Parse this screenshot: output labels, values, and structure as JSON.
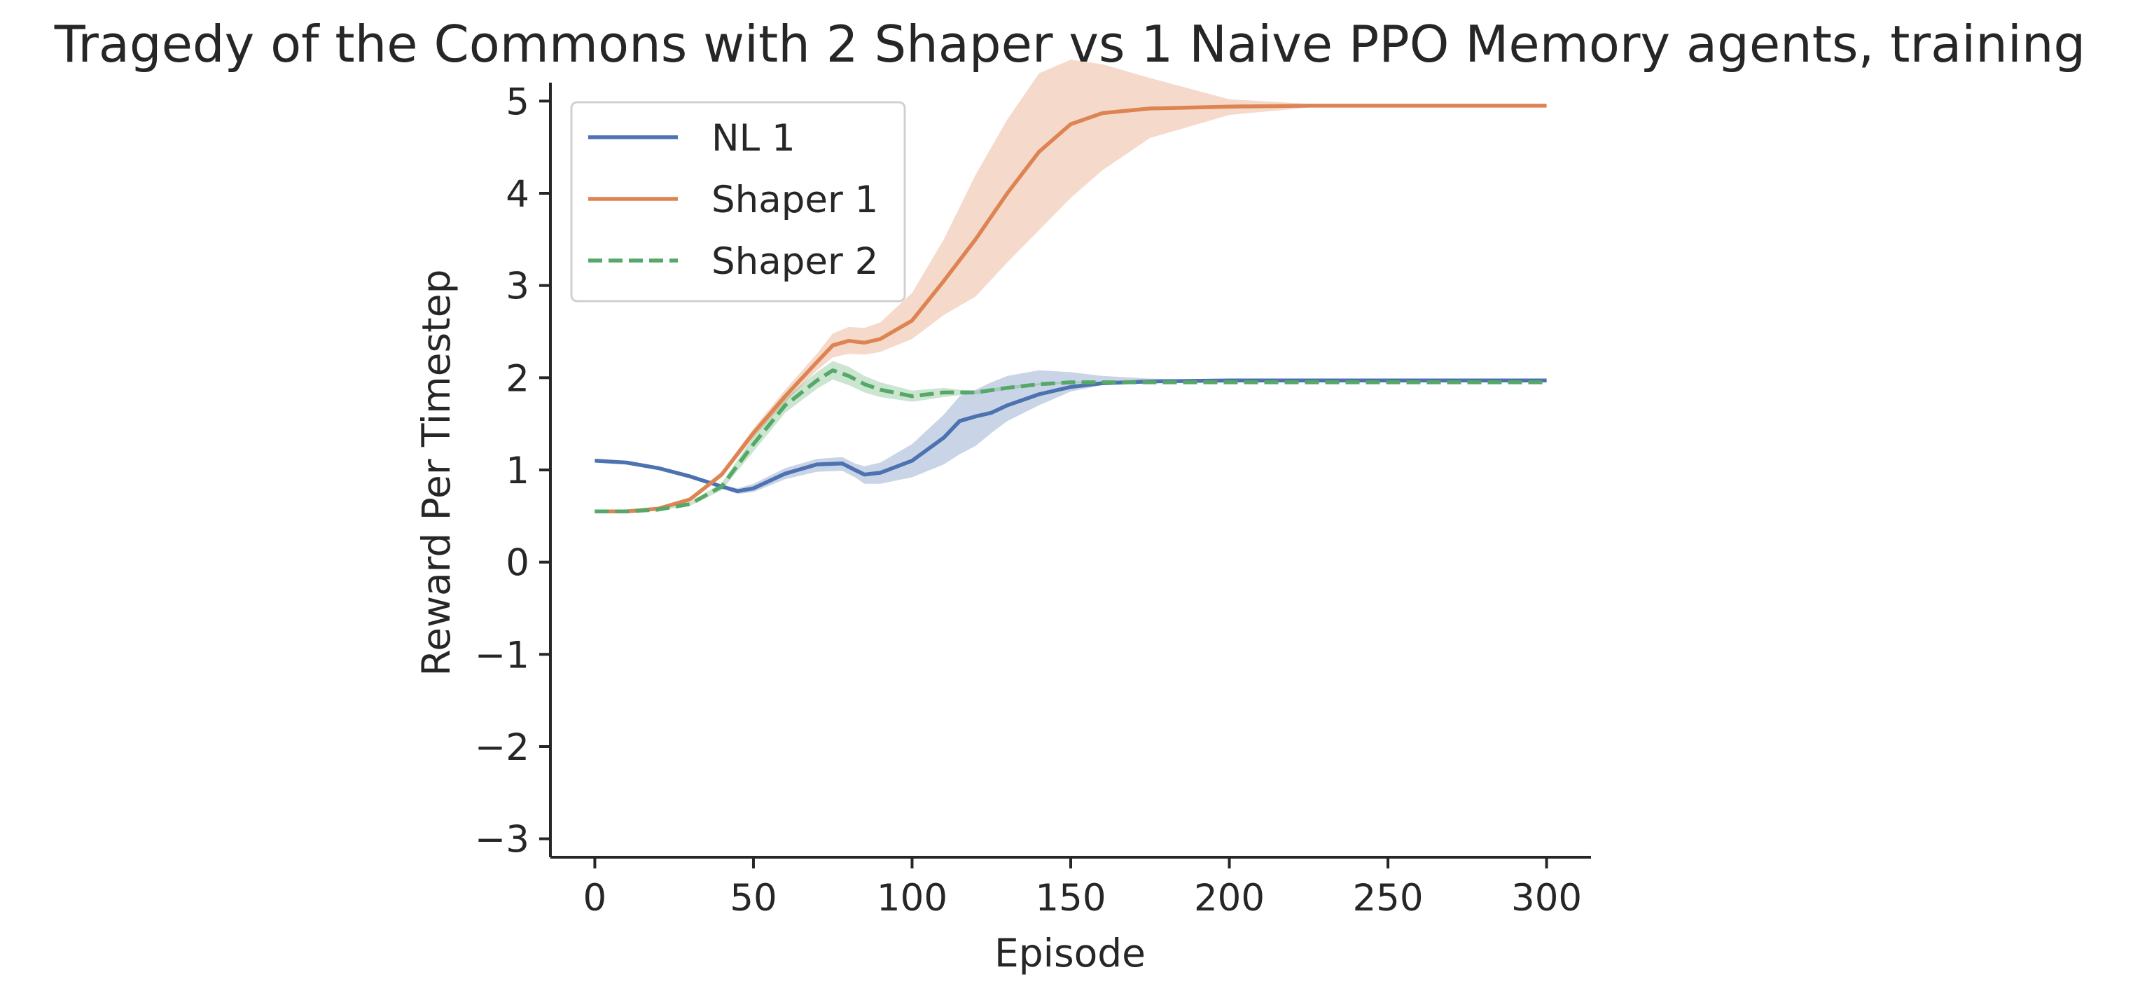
{
  "chart_data": {
    "type": "line",
    "title": "Tragedy of the Commons with 2 Shaper vs 1 Naive PPO Memory agents, training",
    "xlabel": "Episode",
    "ylabel": "Reward Per Timestep",
    "xlim": [
      -14,
      314
    ],
    "ylim": [
      -3.2,
      5.2
    ],
    "xticks": [
      0,
      50,
      100,
      150,
      200,
      250,
      300
    ],
    "yticks": [
      -3,
      -2,
      -1,
      0,
      1,
      2,
      3,
      4,
      5
    ],
    "grid": false,
    "legend_position": "upper-left",
    "series": [
      {
        "name": "NL 1",
        "color": "#4c72b0",
        "line_style": "solid",
        "x": [
          0,
          10,
          20,
          30,
          40,
          45,
          50,
          60,
          70,
          78,
          82,
          85,
          90,
          100,
          110,
          115,
          120,
          125,
          130,
          140,
          150,
          160,
          175,
          200,
          250,
          300
        ],
        "y": [
          1.1,
          1.08,
          1.02,
          0.93,
          0.82,
          0.77,
          0.8,
          0.96,
          1.06,
          1.07,
          1.0,
          0.95,
          0.97,
          1.1,
          1.35,
          1.53,
          1.58,
          1.62,
          1.7,
          1.82,
          1.9,
          1.94,
          1.96,
          1.97,
          1.97,
          1.97
        ],
        "lower": [
          1.1,
          1.08,
          1.02,
          0.92,
          0.8,
          0.74,
          0.76,
          0.9,
          0.98,
          0.99,
          0.92,
          0.85,
          0.85,
          0.92,
          1.06,
          1.17,
          1.26,
          1.4,
          1.53,
          1.7,
          1.85,
          1.92,
          1.95,
          1.97,
          1.97,
          1.97
        ],
        "upper": [
          1.1,
          1.08,
          1.02,
          0.94,
          0.84,
          0.8,
          0.85,
          1.02,
          1.12,
          1.14,
          1.07,
          1.04,
          1.08,
          1.28,
          1.6,
          1.8,
          1.87,
          1.95,
          2.02,
          2.08,
          2.06,
          2.02,
          1.99,
          1.97,
          1.97,
          1.97
        ]
      },
      {
        "name": "Shaper 1",
        "color": "#dd8452",
        "line_style": "solid",
        "x": [
          0,
          10,
          20,
          30,
          40,
          50,
          60,
          70,
          75,
          80,
          85,
          90,
          100,
          110,
          120,
          130,
          140,
          150,
          160,
          175,
          200,
          225,
          250,
          300
        ],
        "y": [
          0.55,
          0.55,
          0.58,
          0.68,
          0.95,
          1.4,
          1.8,
          2.17,
          2.35,
          2.4,
          2.38,
          2.42,
          2.62,
          3.05,
          3.5,
          4.0,
          4.45,
          4.75,
          4.87,
          4.92,
          4.94,
          4.95,
          4.95,
          4.95
        ],
        "lower": [
          0.55,
          0.55,
          0.57,
          0.66,
          0.92,
          1.35,
          1.73,
          2.08,
          2.22,
          2.26,
          2.25,
          2.28,
          2.42,
          2.68,
          2.88,
          3.25,
          3.6,
          3.95,
          4.25,
          4.6,
          4.85,
          4.93,
          4.95,
          4.95
        ],
        "upper": [
          0.55,
          0.55,
          0.59,
          0.7,
          0.98,
          1.45,
          1.87,
          2.26,
          2.48,
          2.55,
          2.54,
          2.6,
          2.92,
          3.5,
          4.2,
          4.8,
          5.3,
          5.45,
          5.4,
          5.25,
          5.02,
          4.97,
          4.95,
          4.95
        ]
      },
      {
        "name": "Shaper 2",
        "color": "#55a868",
        "line_style": "dashed",
        "x": [
          0,
          10,
          20,
          30,
          40,
          50,
          60,
          70,
          75,
          80,
          85,
          90,
          100,
          110,
          115,
          120,
          130,
          140,
          150,
          175,
          200,
          250,
          300
        ],
        "y": [
          0.55,
          0.55,
          0.57,
          0.63,
          0.82,
          1.28,
          1.7,
          1.97,
          2.08,
          2.02,
          1.93,
          1.87,
          1.8,
          1.84,
          1.84,
          1.84,
          1.89,
          1.93,
          1.95,
          1.95,
          1.95,
          1.95,
          1.95
        ],
        "lower": [
          0.55,
          0.55,
          0.56,
          0.61,
          0.78,
          1.2,
          1.62,
          1.88,
          1.98,
          1.92,
          1.84,
          1.79,
          1.74,
          1.79,
          1.81,
          1.82,
          1.87,
          1.92,
          1.94,
          1.95,
          1.95,
          1.95,
          1.95
        ],
        "upper": [
          0.55,
          0.55,
          0.58,
          0.65,
          0.86,
          1.36,
          1.78,
          2.06,
          2.18,
          2.12,
          2.02,
          1.95,
          1.86,
          1.89,
          1.87,
          1.86,
          1.91,
          1.94,
          1.96,
          1.95,
          1.95,
          1.95,
          1.95
        ]
      }
    ]
  }
}
